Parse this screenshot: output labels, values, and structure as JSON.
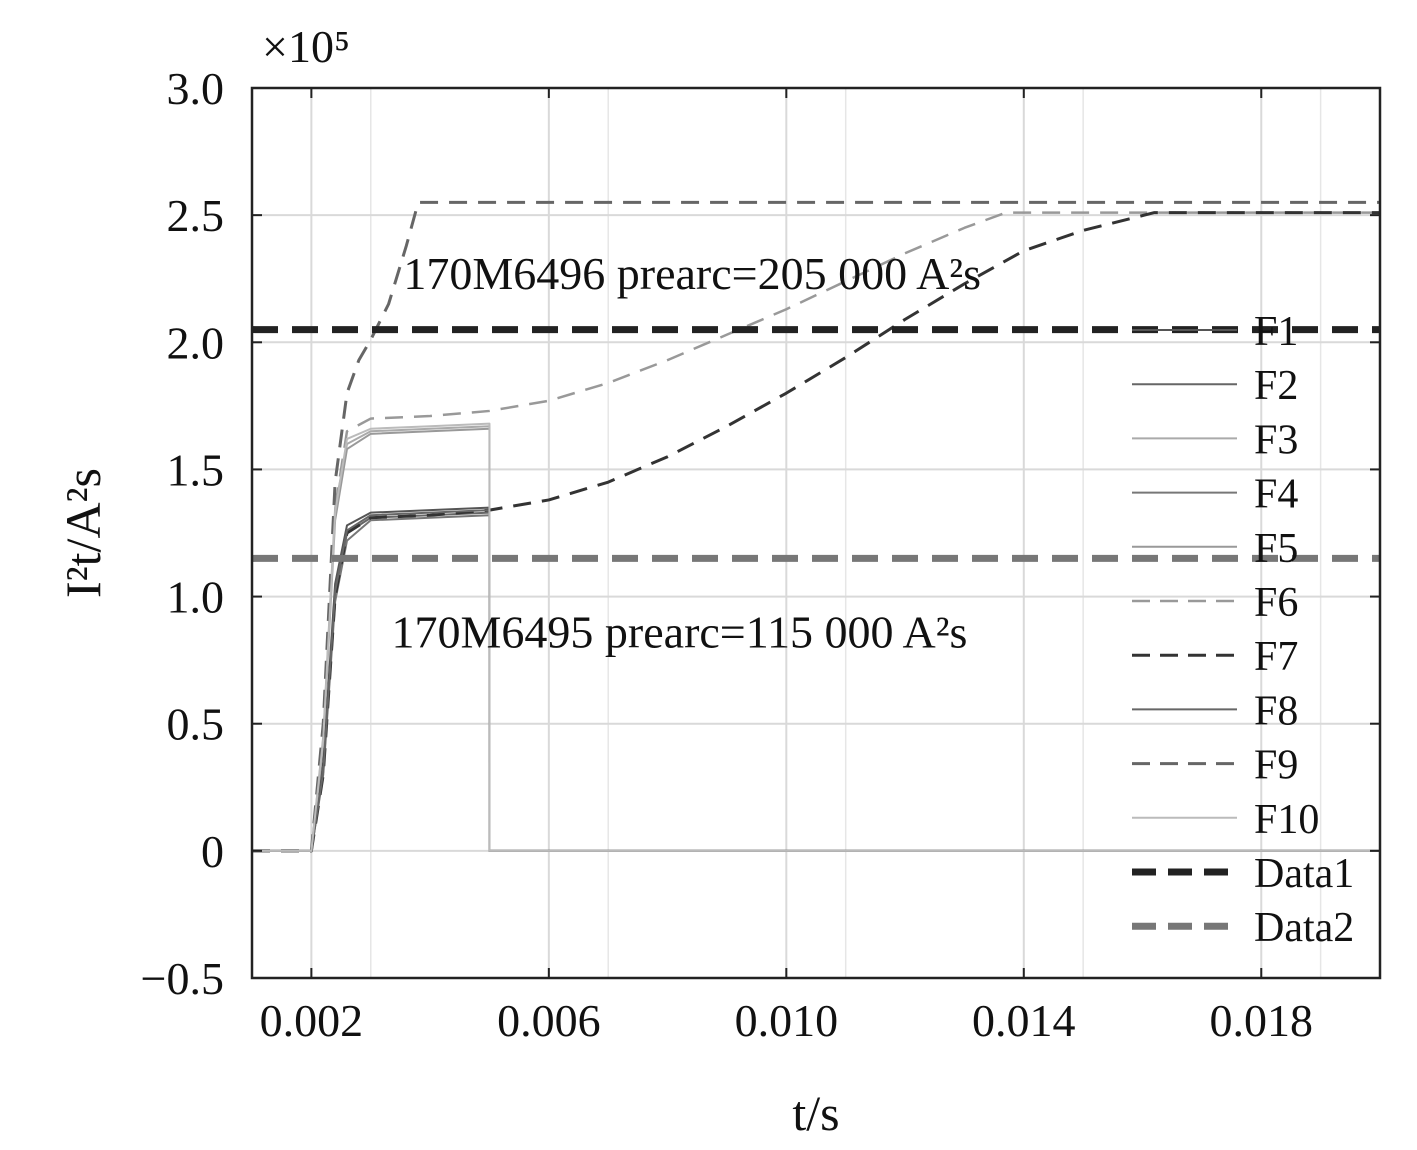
{
  "chart_data": {
    "type": "line",
    "xlabel": "t/s",
    "ylabel": "I²t/A²s",
    "y_multiplier": "×10⁵",
    "xlim": [
      0.001,
      0.02
    ],
    "ylim": [
      -0.5,
      3.0
    ],
    "x_ticks": [
      0.002,
      0.006,
      0.01,
      0.014,
      0.018
    ],
    "x_tick_labels": [
      "0.002",
      "0.006",
      "0.010",
      "0.014",
      "0.018"
    ],
    "y_ticks": [
      -0.5,
      0,
      0.5,
      1.0,
      1.5,
      2.0,
      2.5,
      3.0
    ],
    "y_tick_labels": [
      "−0.5",
      "0",
      "0.5",
      "1.0",
      "1.5",
      "2.0",
      "2.5",
      "3.0"
    ],
    "grid": true,
    "legend_position": "right",
    "annotations": [
      {
        "text": "170M6496 prearc=205 000 A²s",
        "x": 0.00355,
        "y": 2.21
      },
      {
        "text": "170M6495 prearc=115 000 A²s",
        "x": 0.00335,
        "y": 0.8
      }
    ],
    "series": [
      {
        "name": "F1",
        "style": "solid",
        "color": "#555555",
        "width": 2,
        "x": [
          0.001,
          0.002,
          0.0022,
          0.0024,
          0.0026,
          0.003,
          0.004,
          0.005,
          0.0050001,
          0.02
        ],
        "y": [
          0.0,
          0.0,
          0.35,
          1.05,
          1.28,
          1.33,
          1.34,
          1.35,
          0.0,
          0.0
        ]
      },
      {
        "name": "F2",
        "style": "solid",
        "color": "#666666",
        "width": 2,
        "x": [
          0.001,
          0.002,
          0.0022,
          0.0024,
          0.0026,
          0.003,
          0.004,
          0.005,
          0.0050001,
          0.02
        ],
        "y": [
          0.0,
          0.0,
          0.32,
          1.0,
          1.25,
          1.31,
          1.32,
          1.33,
          0.0,
          0.0
        ]
      },
      {
        "name": "F3",
        "style": "solid",
        "color": "#aaaaaa",
        "width": 2,
        "x": [
          0.001,
          0.002,
          0.0022,
          0.0024,
          0.0026,
          0.003,
          0.004,
          0.005,
          0.0050001,
          0.02
        ],
        "y": [
          0.0,
          0.0,
          0.45,
          1.35,
          1.6,
          1.65,
          1.66,
          1.67,
          0.0,
          0.0
        ]
      },
      {
        "name": "F4",
        "style": "solid",
        "color": "#777777",
        "width": 2,
        "x": [
          0.001,
          0.002,
          0.0022,
          0.0024,
          0.0026,
          0.003,
          0.004,
          0.005,
          0.0050001,
          0.02
        ],
        "y": [
          0.0,
          0.0,
          0.3,
          0.98,
          1.22,
          1.3,
          1.31,
          1.32,
          0.0,
          0.0
        ]
      },
      {
        "name": "F5",
        "style": "solid",
        "color": "#999999",
        "width": 2,
        "x": [
          0.001,
          0.002,
          0.0022,
          0.0024,
          0.0026,
          0.003,
          0.004,
          0.005,
          0.0050001,
          0.02
        ],
        "y": [
          0.0,
          0.0,
          0.42,
          1.3,
          1.58,
          1.64,
          1.65,
          1.66,
          0.0,
          0.0
        ]
      },
      {
        "name": "F6",
        "style": "dashed",
        "color": "#999999",
        "width": 2.5,
        "x": [
          0.001,
          0.002,
          0.0022,
          0.0024,
          0.0026,
          0.003,
          0.004,
          0.005,
          0.006,
          0.007,
          0.008,
          0.009,
          0.01,
          0.011,
          0.012,
          0.013,
          0.0137,
          0.014,
          0.016,
          0.02
        ],
        "y": [
          0.0,
          0.0,
          0.45,
          1.35,
          1.65,
          1.7,
          1.71,
          1.73,
          1.77,
          1.84,
          1.93,
          2.03,
          2.13,
          2.24,
          2.35,
          2.45,
          2.51,
          2.51,
          2.51,
          2.51
        ]
      },
      {
        "name": "F7",
        "style": "dashed",
        "color": "#333333",
        "width": 3,
        "x": [
          0.001,
          0.002,
          0.0022,
          0.0024,
          0.0026,
          0.003,
          0.004,
          0.005,
          0.006,
          0.007,
          0.008,
          0.009,
          0.01,
          0.011,
          0.012,
          0.013,
          0.014,
          0.015,
          0.0162,
          0.017,
          0.02
        ],
        "y": [
          0.0,
          0.0,
          0.3,
          1.0,
          1.25,
          1.31,
          1.32,
          1.34,
          1.38,
          1.45,
          1.55,
          1.67,
          1.8,
          1.94,
          2.09,
          2.23,
          2.36,
          2.44,
          2.51,
          2.51,
          2.51
        ]
      },
      {
        "name": "F8",
        "style": "solid",
        "color": "#666666",
        "width": 2,
        "x": [
          0.001,
          0.002,
          0.0022,
          0.0024,
          0.0026,
          0.003,
          0.004,
          0.005,
          0.0050001,
          0.02
        ],
        "y": [
          0.0,
          0.0,
          0.31,
          1.02,
          1.26,
          1.32,
          1.33,
          1.34,
          0.0,
          0.0
        ]
      },
      {
        "name": "F9",
        "style": "dashed",
        "color": "#666666",
        "width": 3,
        "x": [
          0.001,
          0.002,
          0.0022,
          0.0024,
          0.0026,
          0.0028,
          0.003,
          0.0033,
          0.0036,
          0.0038,
          0.005,
          0.01,
          0.015,
          0.02
        ],
        "y": [
          0.0,
          0.0,
          0.5,
          1.45,
          1.8,
          1.93,
          2.01,
          2.15,
          2.38,
          2.55,
          2.55,
          2.55,
          2.55,
          2.55
        ]
      },
      {
        "name": "F10",
        "style": "solid",
        "color": "#bbbbbb",
        "width": 2,
        "x": [
          0.001,
          0.002,
          0.0022,
          0.0024,
          0.0026,
          0.003,
          0.004,
          0.005,
          0.0050001,
          0.02
        ],
        "y": [
          0.0,
          0.0,
          0.44,
          1.33,
          1.62,
          1.66,
          1.67,
          1.68,
          0.0,
          0.0
        ]
      },
      {
        "name": "Data1",
        "style": "thick-dashed",
        "color": "#222222",
        "width": 7,
        "x": [
          0.001,
          0.02
        ],
        "y": [
          2.05,
          2.05
        ]
      },
      {
        "name": "Data2",
        "style": "thick-dashed",
        "color": "#777777",
        "width": 7,
        "x": [
          0.001,
          0.02
        ],
        "y": [
          1.15,
          1.15
        ]
      }
    ]
  }
}
